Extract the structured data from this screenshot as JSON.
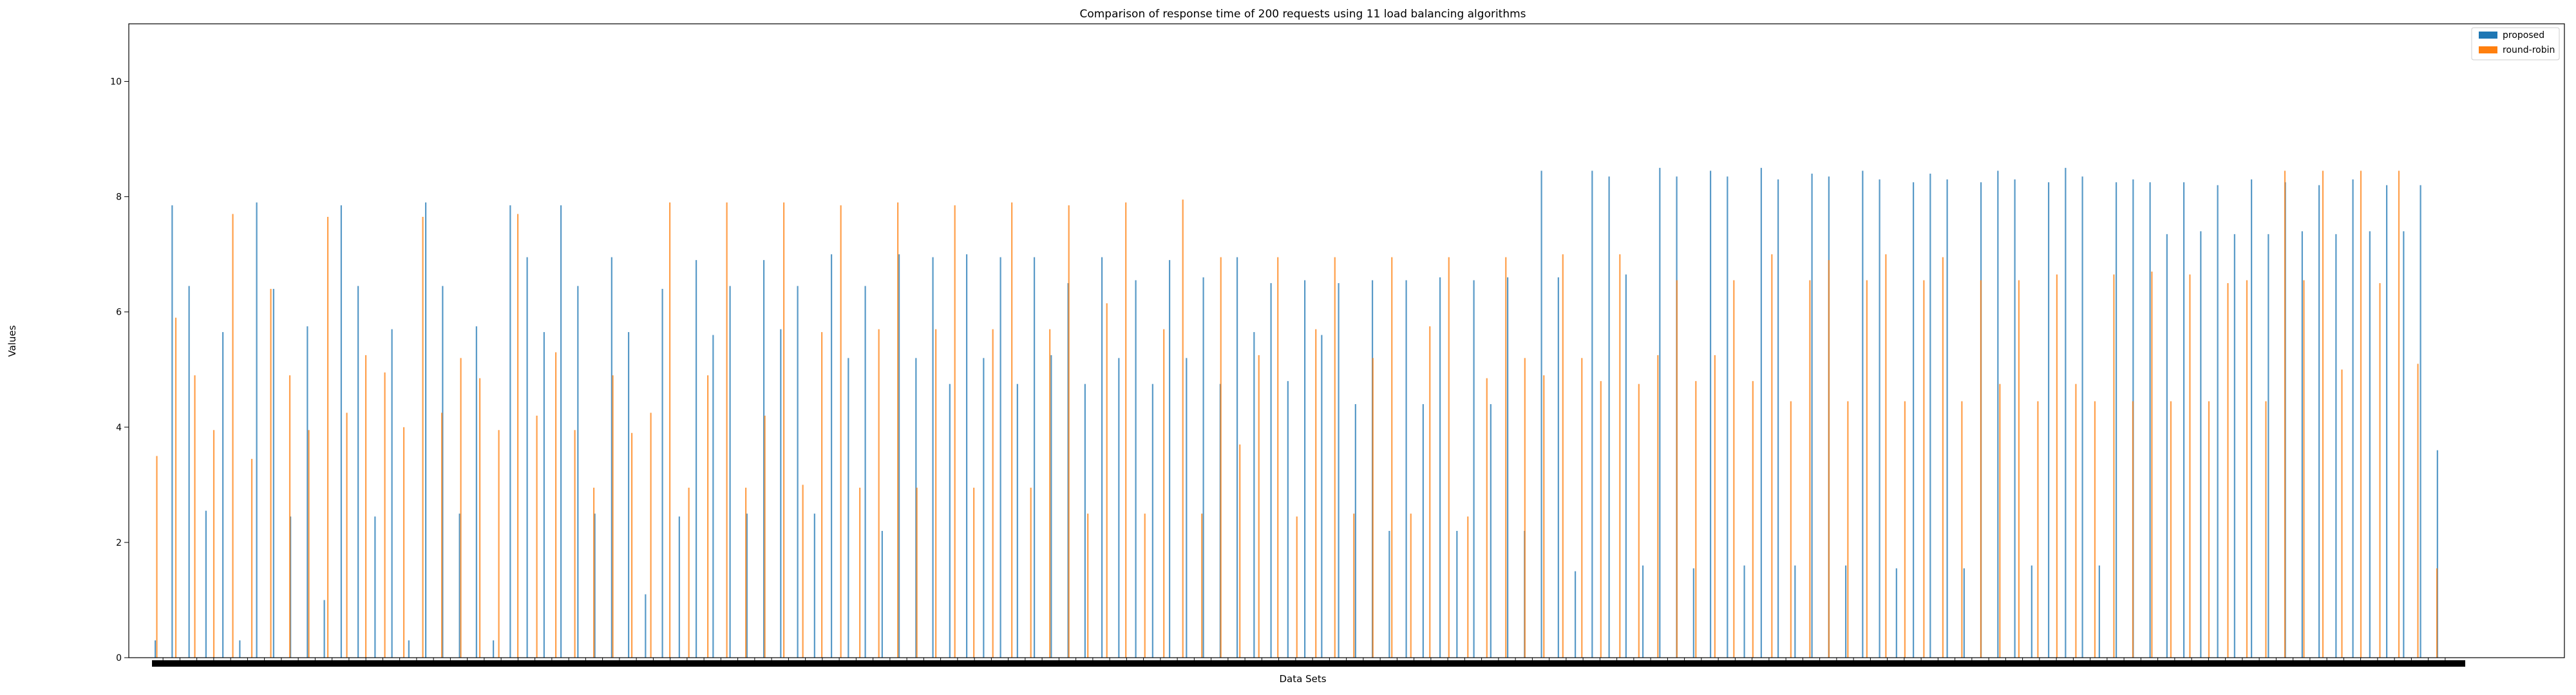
{
  "chart_data": {
    "type": "bar",
    "title": "Comparison of response time of 200 requests using 11 load balancing algorithms",
    "xlabel": "Data Sets",
    "ylabel": "Values",
    "ylim": [
      0,
      11
    ],
    "yticks": [
      0,
      2,
      4,
      6,
      8,
      10
    ],
    "grid": false,
    "legend_position": "top-right",
    "series": [
      {
        "name": "proposed",
        "color": "#1f77b4",
        "values": [
          0.3,
          7.85,
          6.45,
          2.55,
          5.65,
          0.3,
          7.9,
          6.4,
          2.45,
          5.75,
          1.0,
          7.85,
          6.45,
          2.45,
          5.7,
          0.3,
          7.9,
          6.45,
          2.5,
          5.75,
          0.3,
          7.85,
          6.95,
          5.65,
          7.85,
          6.45,
          2.5,
          6.95,
          5.65,
          1.1,
          6.4,
          2.45,
          6.9,
          5.6,
          6.45,
          2.5,
          6.9,
          5.7,
          6.45,
          2.5,
          7.0,
          5.2,
          6.45,
          2.2,
          7.0,
          5.2,
          6.95,
          4.75,
          7.0,
          5.2,
          6.95,
          4.75,
          6.95,
          5.25,
          6.5,
          4.75,
          6.95,
          5.2,
          6.55,
          4.75,
          6.9,
          5.2,
          6.6,
          4.75,
          6.95,
          5.65,
          6.5,
          4.8,
          6.55,
          5.6,
          6.5,
          4.4,
          6.55,
          2.2,
          6.55,
          4.4,
          6.6,
          2.2,
          6.55,
          4.4,
          6.6,
          2.2,
          8.45,
          6.6,
          1.5,
          8.45,
          8.35,
          6.65,
          1.6,
          8.5,
          8.35,
          1.55,
          8.45,
          8.35,
          1.6,
          8.5,
          8.3,
          1.6,
          8.4,
          8.35,
          1.6,
          8.45,
          8.3,
          1.55,
          8.25,
          8.4,
          8.3,
          1.55,
          8.25,
          8.45,
          8.3,
          1.6,
          8.25,
          8.5,
          8.35,
          1.6,
          8.25,
          8.3,
          8.25,
          7.35,
          8.25,
          7.4,
          8.2,
          7.35,
          8.3,
          7.35,
          8.25,
          7.4,
          8.2,
          7.35,
          8.3,
          7.4,
          8.2,
          7.4,
          8.2,
          3.6
        ]
      },
      {
        "name": "round-robin",
        "color": "#ff7f0e",
        "values": [
          3.5,
          5.9,
          4.9,
          3.95,
          7.7,
          3.45,
          6.4,
          4.9,
          3.95,
          7.65,
          4.25,
          5.25,
          4.95,
          4.0,
          7.65,
          4.25,
          5.2,
          4.85,
          3.95,
          7.7,
          4.2,
          5.3,
          3.95,
          2.95,
          4.9,
          3.9,
          4.25,
          7.9,
          2.95,
          4.9,
          7.9,
          2.95,
          4.2,
          7.9,
          3.0,
          5.65,
          7.85,
          2.95,
          5.7,
          7.9,
          2.95,
          5.7,
          7.85,
          2.95,
          5.7,
          7.9,
          2.95,
          5.7,
          7.85,
          2.5,
          6.15,
          7.9,
          2.5,
          5.7,
          7.95,
          2.5,
          6.95,
          3.7,
          5.25,
          6.95,
          2.45,
          5.7,
          6.95,
          2.5,
          5.2,
          6.95,
          2.5,
          5.75,
          6.95,
          2.45,
          4.85,
          6.95,
          5.2,
          4.9,
          7.0,
          5.2,
          4.8,
          7.0,
          4.75,
          5.25,
          6.55,
          4.8,
          5.25,
          6.55,
          4.8,
          7.0,
          4.45,
          6.55,
          6.9,
          4.45,
          6.55,
          7.0,
          4.45,
          6.55,
          6.95,
          4.45,
          6.55,
          4.75,
          6.55,
          4.45,
          6.65,
          4.75,
          4.45,
          6.65,
          4.45,
          6.7,
          4.45,
          6.65,
          4.45,
          6.5,
          6.55,
          4.45,
          8.45,
          6.55,
          8.45,
          5.0,
          8.45,
          6.5,
          8.45,
          5.1,
          1.55
        ]
      }
    ]
  }
}
